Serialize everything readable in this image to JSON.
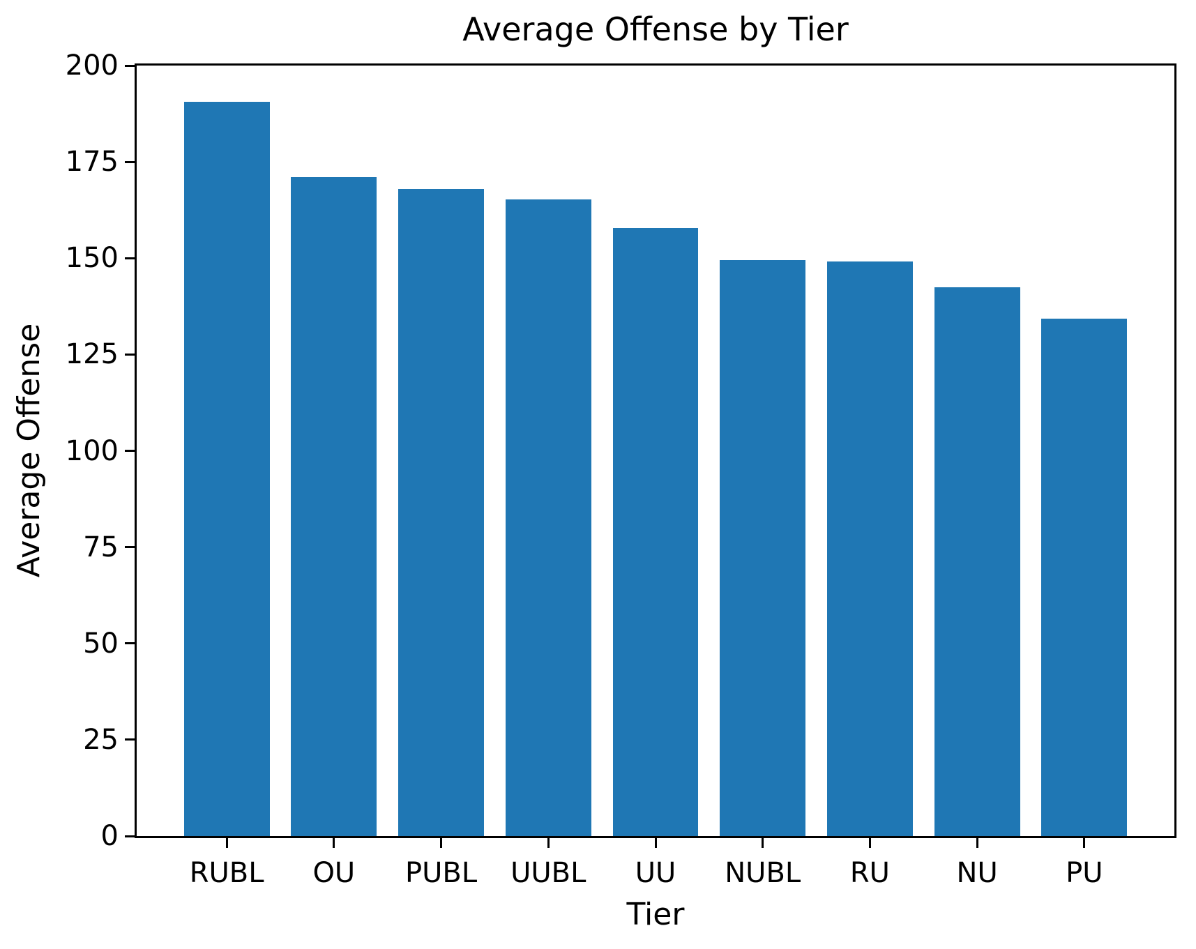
{
  "chart_data": {
    "type": "bar",
    "title": "Average Offense by Tier",
    "xlabel": "Tier",
    "ylabel": "Average Offense",
    "categories": [
      "RUBL",
      "OU",
      "PUBL",
      "UUBL",
      "UU",
      "NUBL",
      "RU",
      "NU",
      "PU"
    ],
    "values": [
      190.6,
      171.1,
      168.0,
      165.2,
      157.8,
      149.5,
      149.2,
      142.4,
      134.3
    ],
    "bar_color": "#1f77b4",
    "ylim": [
      0,
      200
    ],
    "yticks": [
      0,
      25,
      50,
      75,
      100,
      125,
      150,
      175,
      200
    ],
    "xlim": [
      -0.84,
      8.84
    ],
    "bar_width_fraction": 0.8,
    "grid": false,
    "legend_position": "none"
  },
  "figure": {
    "background_color": "#ffffff",
    "spine_color": "#000000",
    "text_color": "#000000"
  }
}
